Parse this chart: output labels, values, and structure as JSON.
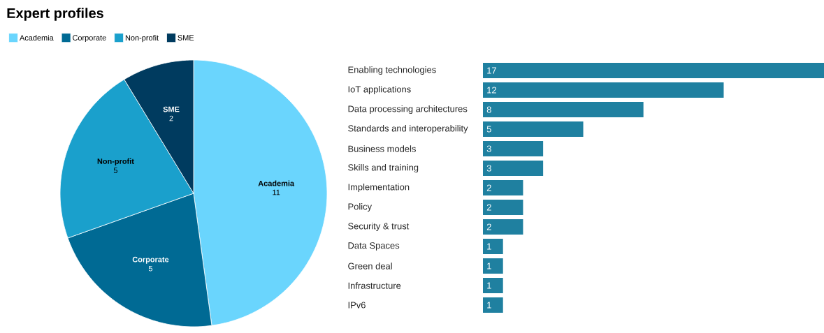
{
  "chart_data": [
    {
      "type": "pie",
      "title": "Expert profiles",
      "categories": [
        "Academia",
        "Corporate",
        "Non-profit",
        "SME"
      ],
      "values": [
        11,
        5,
        5,
        2
      ],
      "colors": [
        "#6ad5fd",
        "#006a94",
        "#1aa0cc",
        "#003b5f"
      ],
      "data_labels": true,
      "legend": "top left"
    },
    {
      "type": "bar",
      "orientation": "horizontal",
      "categories": [
        "Enabling technologies",
        "IoT applications",
        "Data processing architectures",
        "Standards and interoperability",
        "Business models",
        "Skills and training",
        "Implementation",
        "Policy",
        "Security & trust",
        "Data Spaces",
        "Green deal",
        "Infrastructure",
        "IPv6"
      ],
      "values": [
        17,
        12,
        8,
        5,
        3,
        3,
        2,
        2,
        2,
        1,
        1,
        1,
        1
      ],
      "color": "#1f80a0",
      "data_labels": true
    }
  ]
}
